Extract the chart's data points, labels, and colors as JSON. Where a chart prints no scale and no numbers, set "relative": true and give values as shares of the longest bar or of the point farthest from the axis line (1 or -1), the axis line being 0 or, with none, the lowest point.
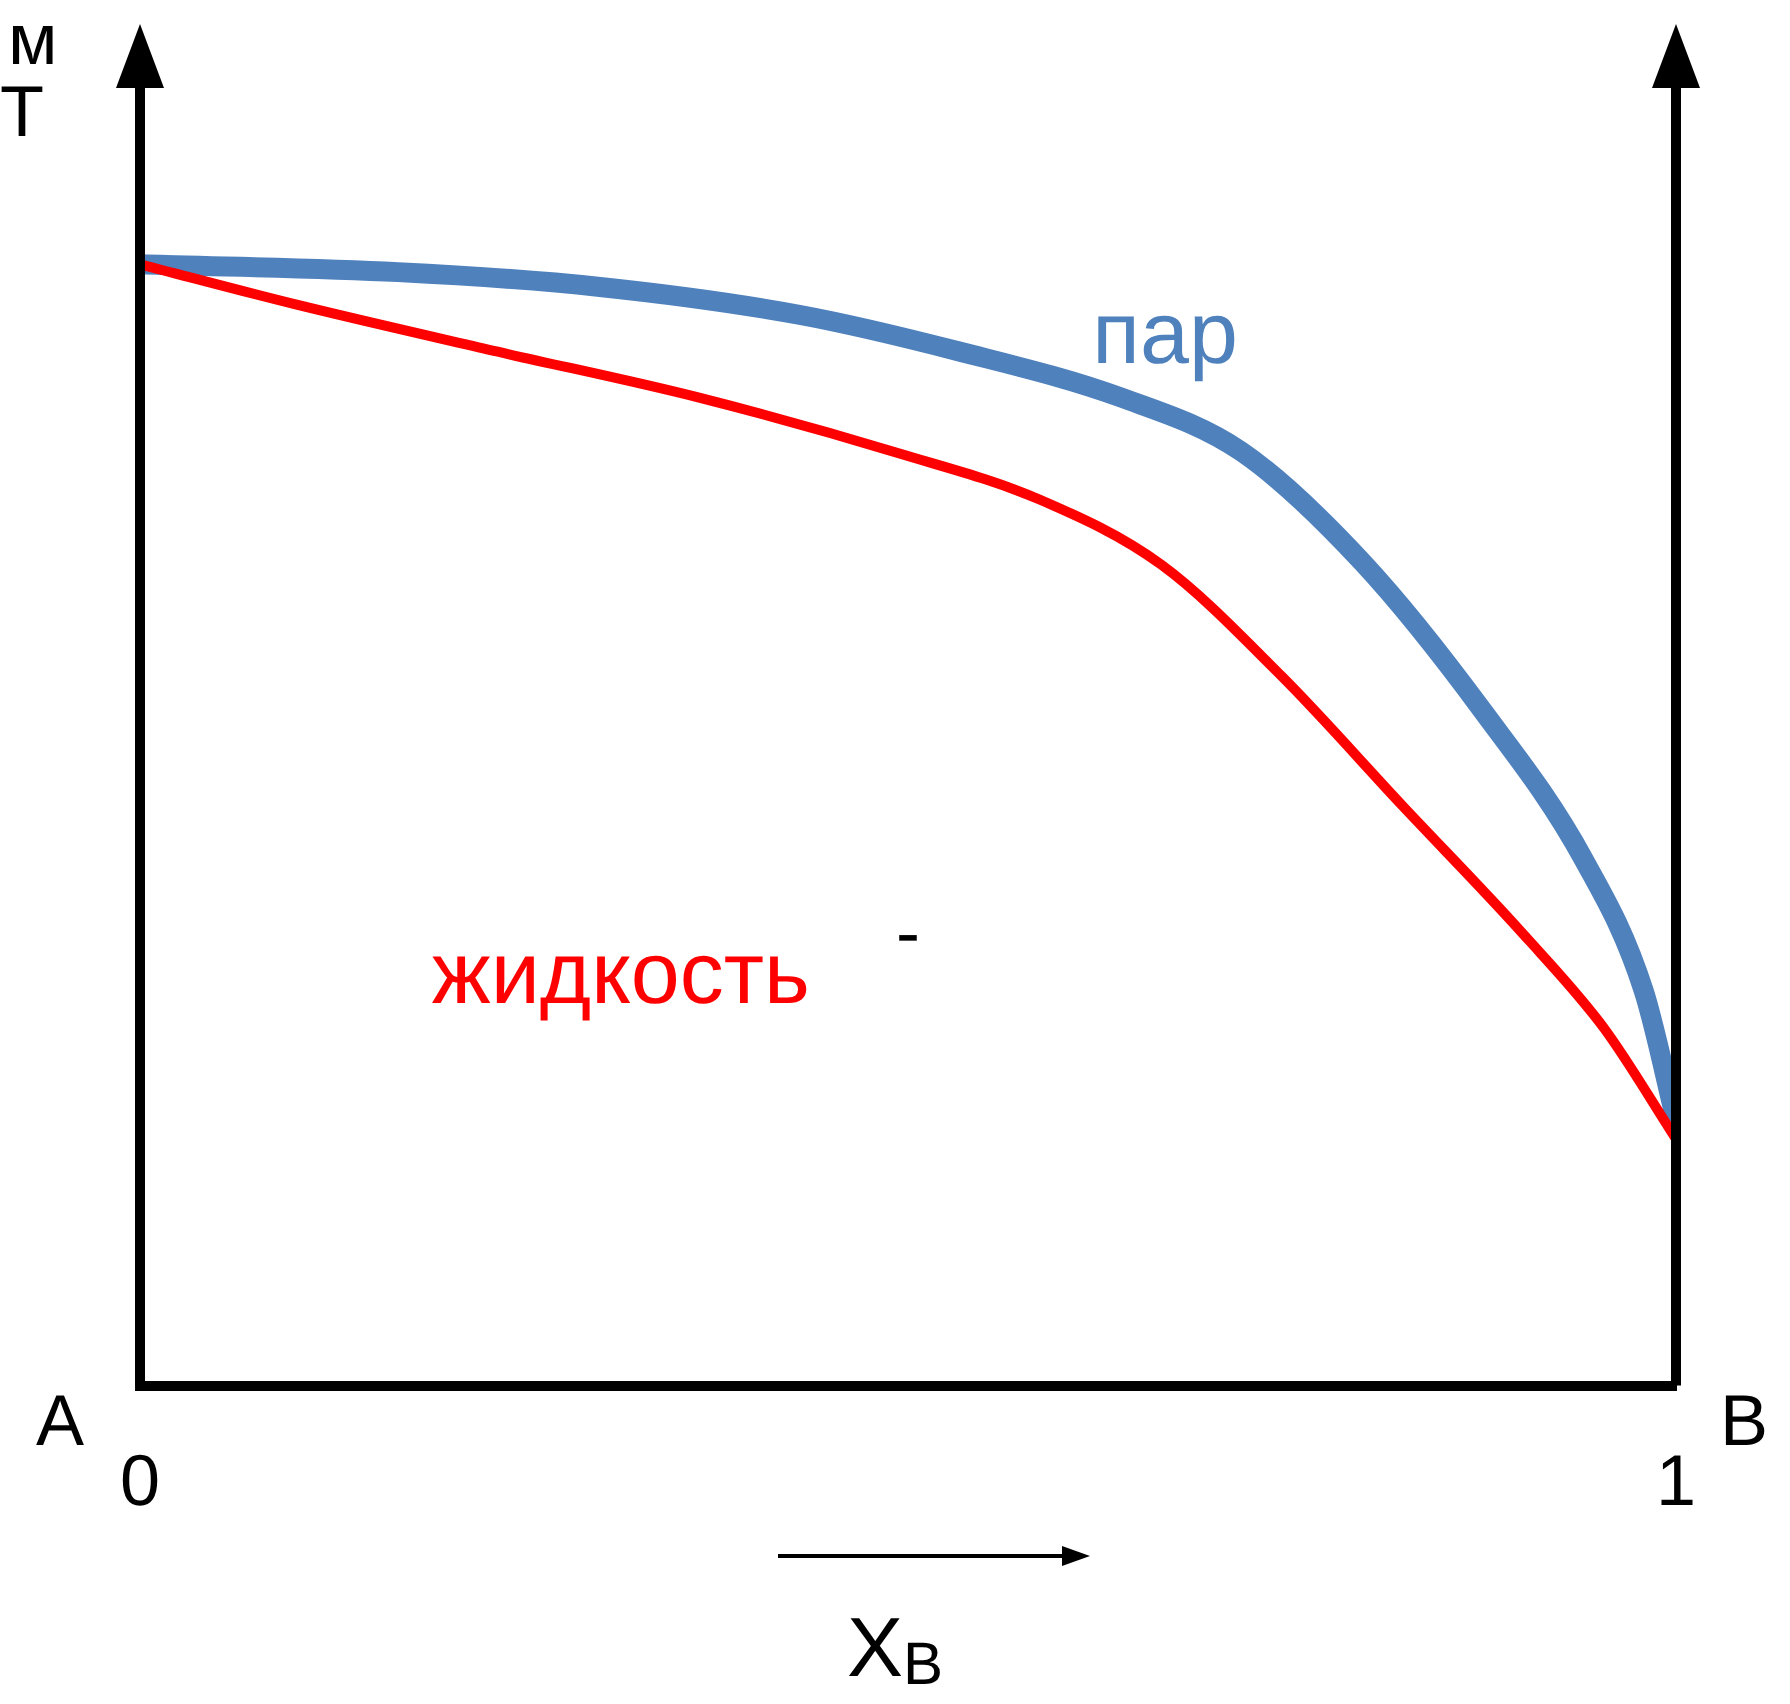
{
  "chart_data": {
    "type": "line",
    "relative": true,
    "ylabel": "Т",
    "xlabel": "X$_{B}$",
    "xlim": [
      0,
      1
    ],
    "xticks": [
      0,
      1
    ],
    "annotations": [
      "м",
      "A",
      "B",
      "-"
    ],
    "series": [
      {
        "name": "пар",
        "color": "#4f81bd",
        "x": [
          0,
          0.168,
          0.298,
          0.429,
          0.534,
          0.639,
          0.717,
          0.796,
          0.874,
          0.94,
          0.979,
          1
        ],
        "values": [
          1,
          0.993,
          0.98,
          0.955,
          0.922,
          0.881,
          0.833,
          0.734,
          0.602,
          0.469,
          0.352,
          0.236
        ]
      },
      {
        "name": "жидкость",
        "color": "#ff0000",
        "x": [
          0,
          0.102,
          0.233,
          0.364,
          0.495,
          0.586,
          0.665,
          0.743,
          0.822,
          0.901,
          0.953,
          1
        ],
        "values": [
          1,
          0.964,
          0.922,
          0.881,
          0.831,
          0.79,
          0.732,
          0.633,
          0.517,
          0.402,
          0.319,
          0.22
        ]
      }
    ]
  }
}
